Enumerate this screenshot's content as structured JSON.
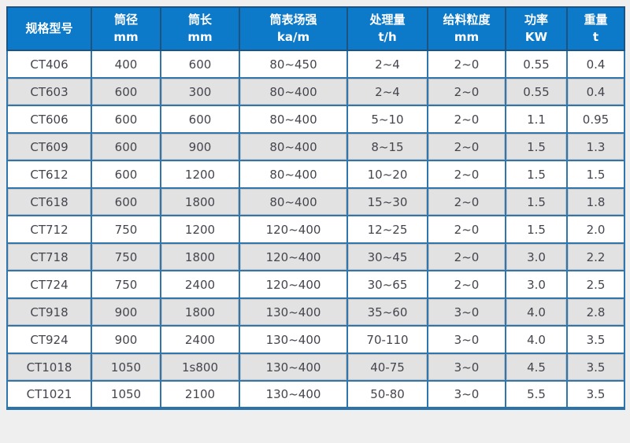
{
  "colors": {
    "header_bg": "#0d79c9",
    "header_border": "#1d5380",
    "body_border": "#2e76ad",
    "alt_row_bg": "#e2e2e2",
    "page_bg": "#f0eff0",
    "header_text": "#ffffff",
    "body_text": "#45454e"
  },
  "table": {
    "columns": [
      {
        "label": "规格型号",
        "unit": ""
      },
      {
        "label": "筒径",
        "unit": "mm"
      },
      {
        "label": "筒长",
        "unit": "mm"
      },
      {
        "label": "筒表场强",
        "unit": "ka/m"
      },
      {
        "label": "处理量",
        "unit": "t/h"
      },
      {
        "label": "给料粒度",
        "unit": "mm"
      },
      {
        "label": "功率",
        "unit": "KW"
      },
      {
        "label": "重量",
        "unit": "t"
      }
    ],
    "rows": [
      [
        "CT406",
        "400",
        "600",
        "80~450",
        "2~4",
        "2~0",
        "0.55",
        "0.4"
      ],
      [
        "CT603",
        "600",
        "300",
        "80~400",
        "2~4",
        "2~0",
        "0.55",
        "0.4"
      ],
      [
        "CT606",
        "600",
        "600",
        "80~400",
        "5~10",
        "2~0",
        "1.1",
        "0.95"
      ],
      [
        "CT609",
        "600",
        "900",
        "80~400",
        "8~15",
        "2~0",
        "1.5",
        "1.3"
      ],
      [
        "CT612",
        "600",
        "1200",
        "80~400",
        "10~20",
        "2~0",
        "1.5",
        "1.5"
      ],
      [
        "CT618",
        "600",
        "1800",
        "80~400",
        "15~30",
        "2~0",
        "1.5",
        "1.8"
      ],
      [
        "CT712",
        "750",
        "1200",
        "120~400",
        "12~25",
        "2~0",
        "1.5",
        "2.0"
      ],
      [
        "CT718",
        "750",
        "1800",
        "120~400",
        "30~45",
        "2~0",
        "3.0",
        "2.2"
      ],
      [
        "CT724",
        "750",
        "2400",
        "120~400",
        "30~65",
        "2~0",
        "3.0",
        "2.5"
      ],
      [
        "CT918",
        "900",
        "1800",
        "130~400",
        "35~60",
        "3~0",
        "4.0",
        "2.8"
      ],
      [
        "CT924",
        "900",
        "2400",
        "130~400",
        "70-110",
        "3~0",
        "4.0",
        "3.5"
      ],
      [
        "CT1018",
        "1050",
        "1s800",
        "130~400",
        "40-75",
        "3~0",
        "4.5",
        "3.5"
      ],
      [
        "CT1021",
        "1050",
        "2100",
        "130~400",
        "50-80",
        "3~0",
        "5.5",
        "3.5"
      ]
    ]
  }
}
